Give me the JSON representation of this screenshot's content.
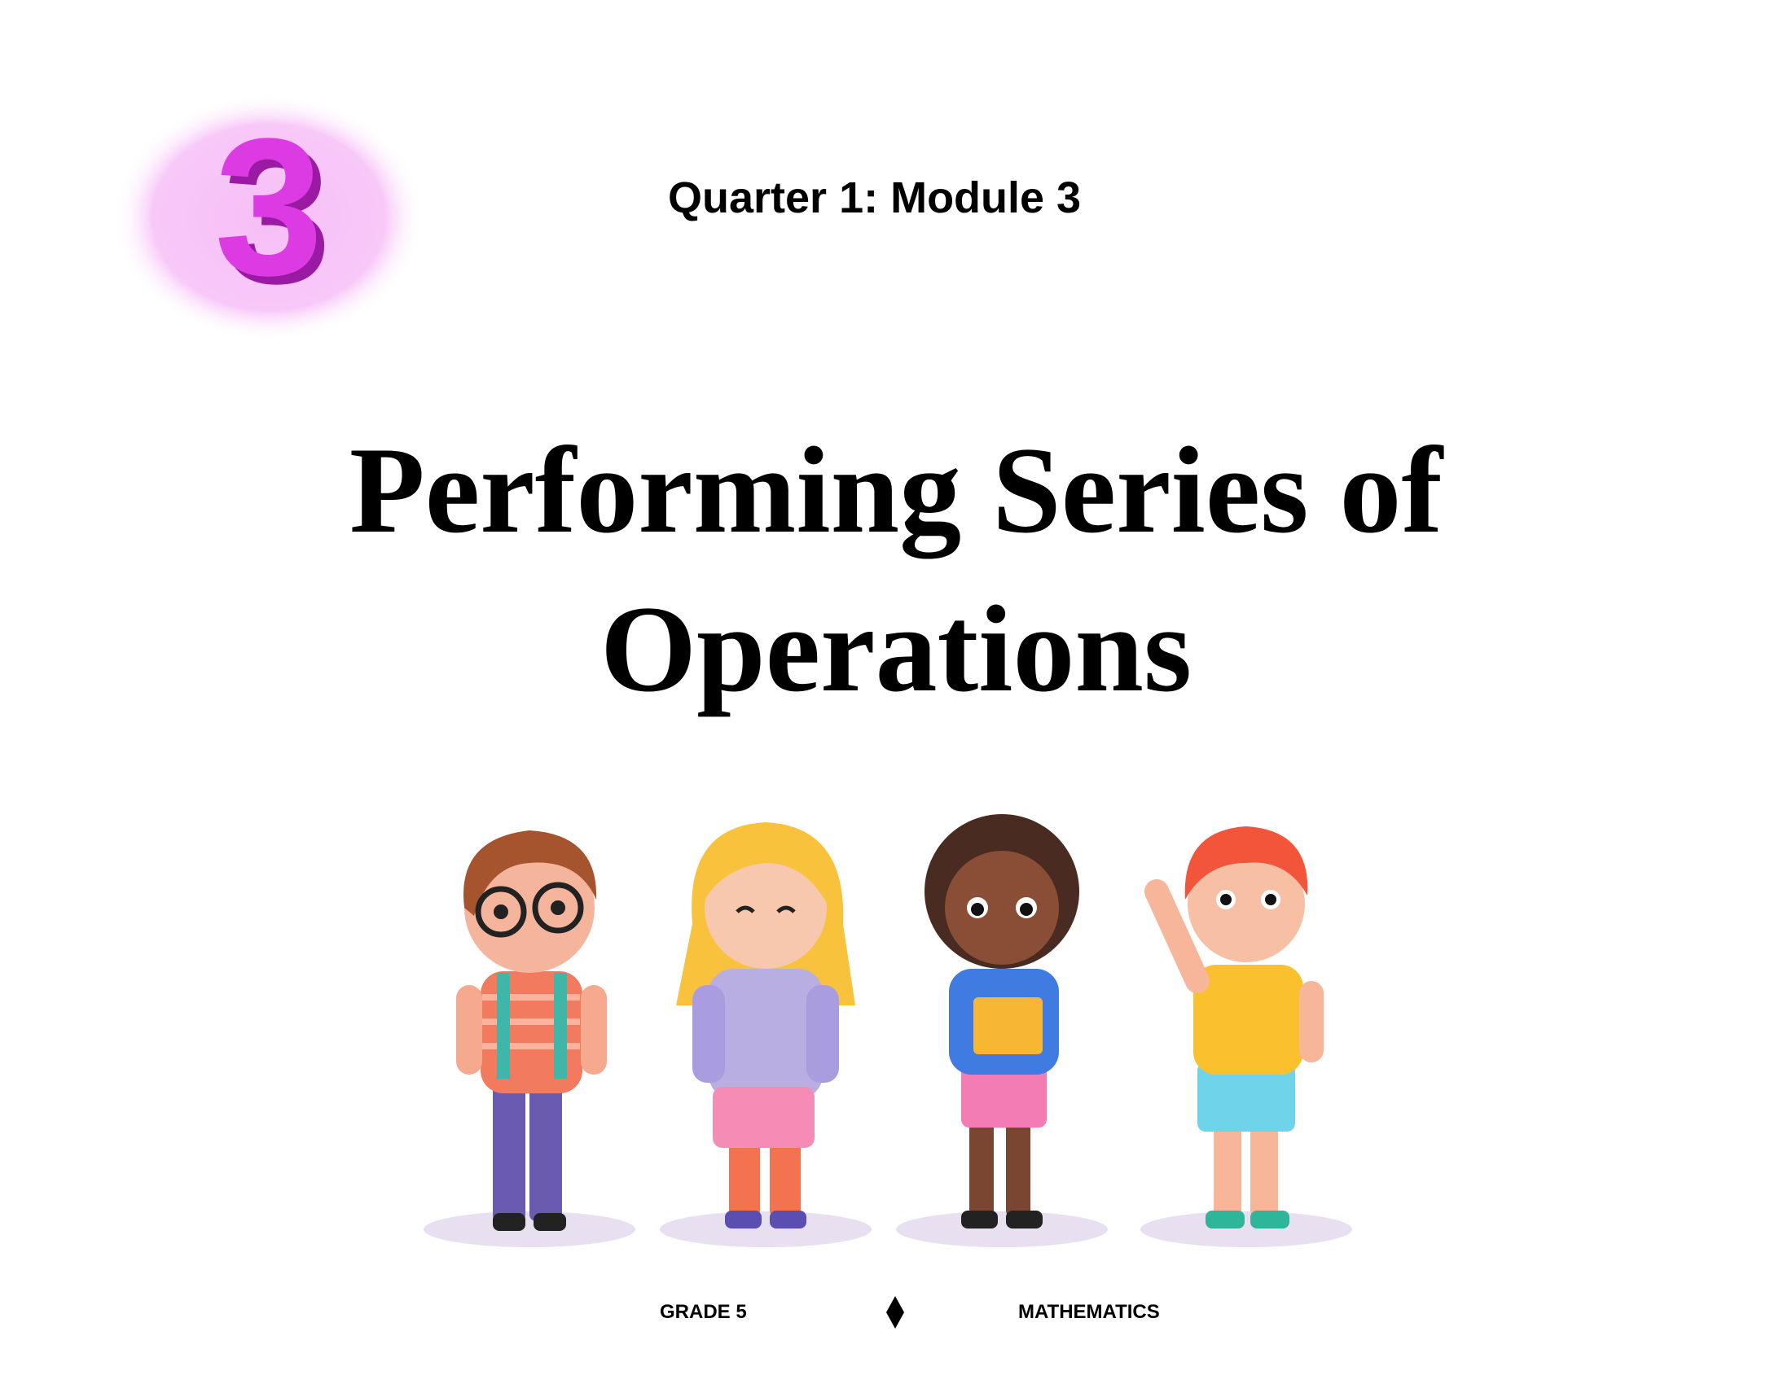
{
  "badge": {
    "number": "3",
    "color": "#d92fe0",
    "glow": "#f7c6f7"
  },
  "header": {
    "quarter_module": "Quarter 1: Module 3"
  },
  "title": {
    "line1": "Performing Series of",
    "line2": "Operations"
  },
  "illustration": {
    "description_icon": "four-schoolchildren-illustration"
  },
  "footer": {
    "grade": "GRADE 5",
    "separator_icon": "diamond-icon",
    "subject": "MATHEMATICS"
  }
}
